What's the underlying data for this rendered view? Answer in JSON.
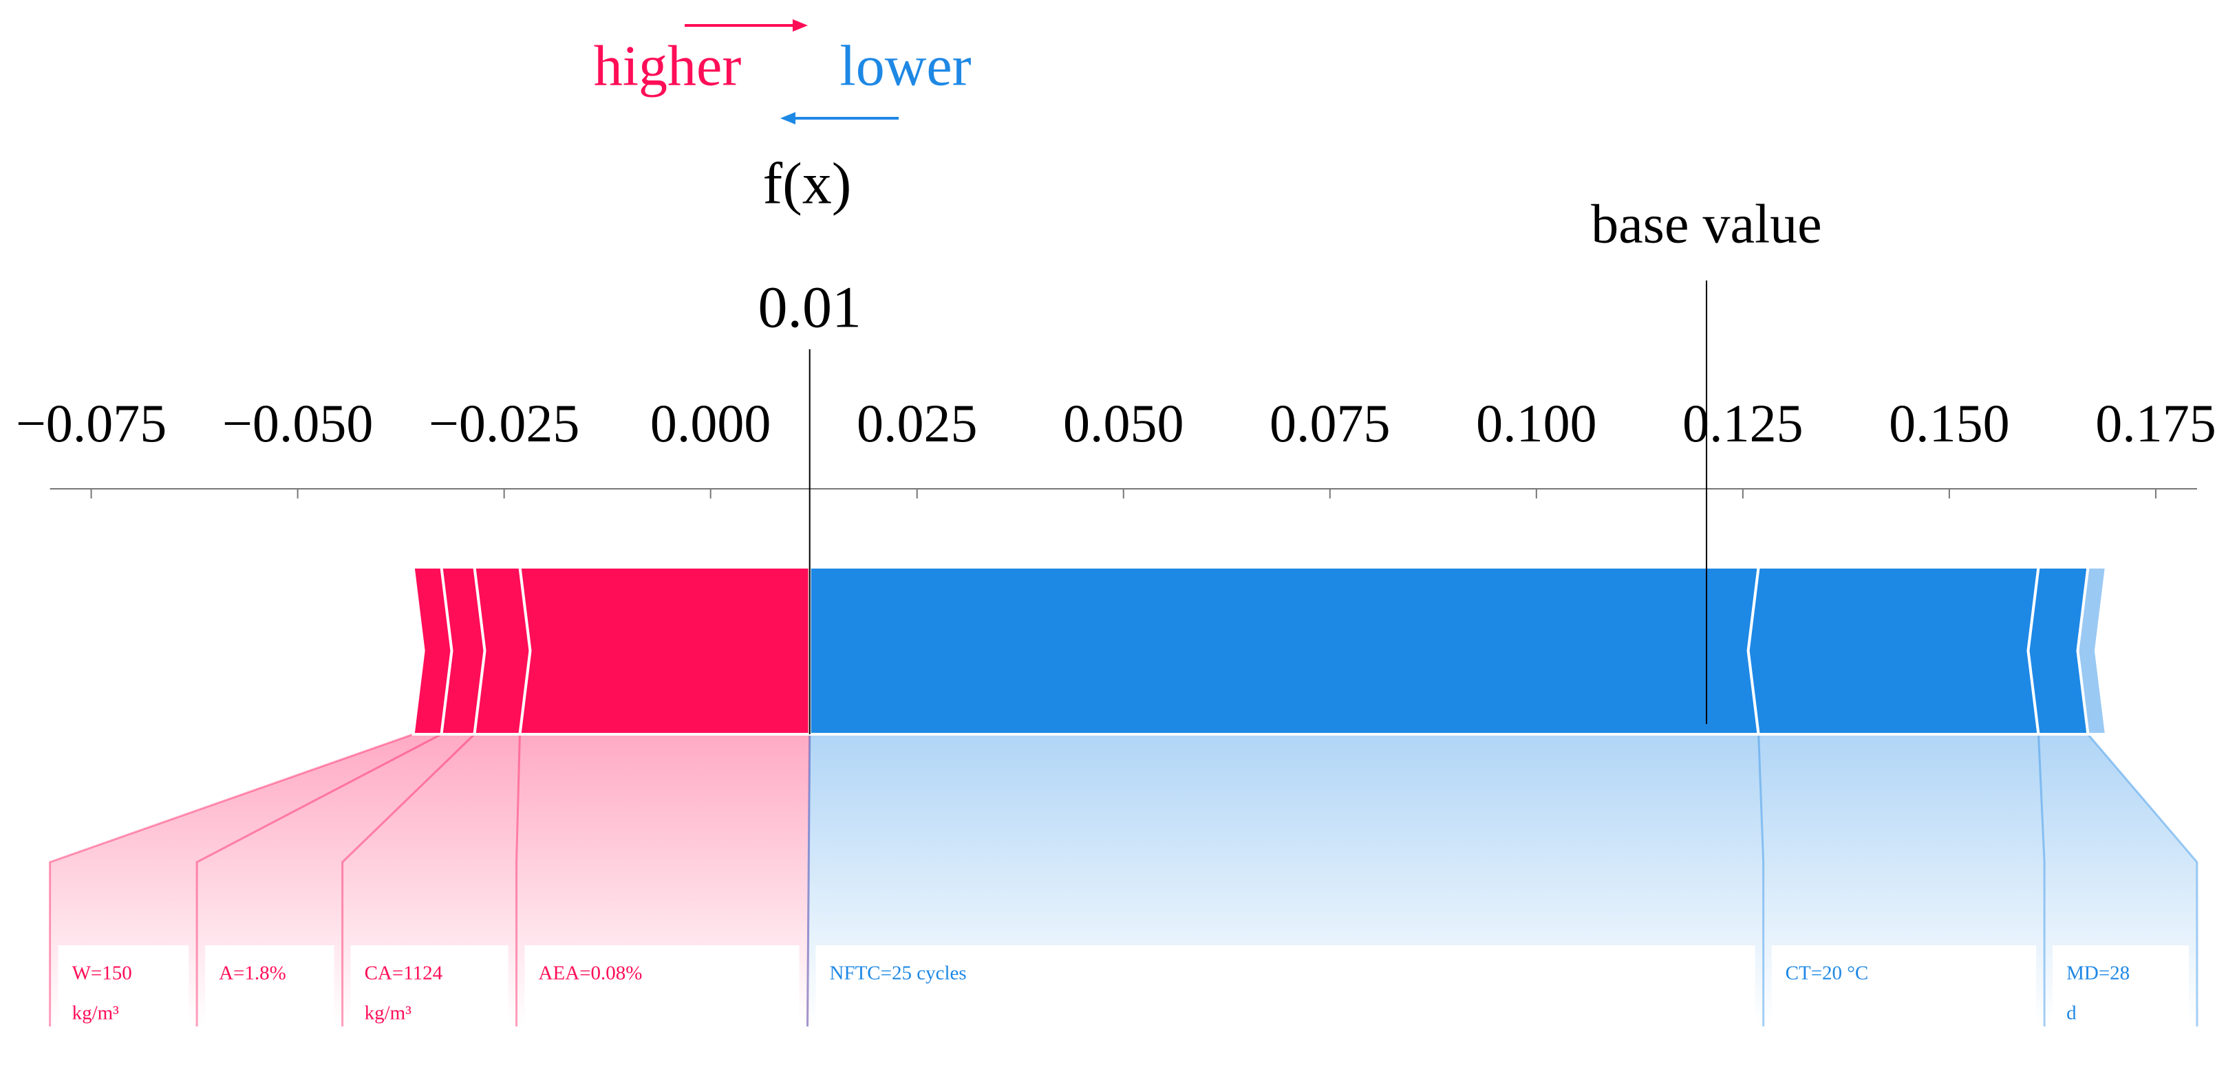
{
  "chart_data": {
    "type": "force",
    "output_label": "f(x)",
    "output_value": {
      "value": 0.012,
      "label": "0.01"
    },
    "base_label": "base value",
    "base_value": 0.1206,
    "xlim": [
      -0.08,
      0.18
    ],
    "xticks": [
      {
        "value": -0.075,
        "label": "−0.075"
      },
      {
        "value": -0.05,
        "label": "−0.050"
      },
      {
        "value": -0.025,
        "label": "−0.025"
      },
      {
        "value": 0,
        "label": "0.000"
      },
      {
        "value": 0.025,
        "label": "0.025"
      },
      {
        "value": 0.05,
        "label": "0.050"
      },
      {
        "value": 0.075,
        "label": "0.075"
      },
      {
        "value": 0.1,
        "label": "0.100"
      },
      {
        "value": 0.125,
        "label": "0.125"
      },
      {
        "value": 0.15,
        "label": "0.150"
      },
      {
        "value": 0.175,
        "label": "0.175"
      }
    ],
    "series": [
      {
        "name": "higher",
        "color": "#ff0d57",
        "values": [
          0.0351,
          0.0055,
          0.004,
          0.0034
        ],
        "labels": [
          [
            "AEA=0.08%"
          ],
          [
            "CA=1124",
            "kg/m³"
          ],
          [
            "A=1.8%"
          ],
          [
            "W=150",
            "kg/m³"
          ]
        ]
      },
      {
        "name": "lower",
        "color": "#1e88e5",
        "values": [
          0.1149,
          0.0339,
          0.006,
          0.0022
        ],
        "labels": [
          [
            "NFTC=25 cycles"
          ],
          [
            "CT=20 °C"
          ],
          [
            "MD=28",
            "d"
          ],
          null
        ]
      }
    ]
  }
}
